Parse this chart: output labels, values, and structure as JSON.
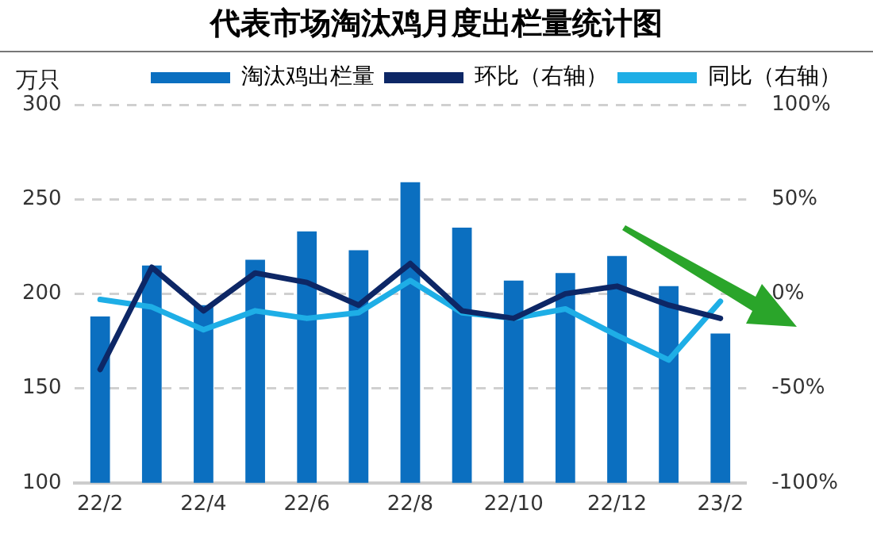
{
  "chart_data": {
    "type": "bar",
    "title": "代表市场淘汰鸡月度出栏量统计图",
    "ylabel": "万只",
    "categories": [
      "22/2",
      null,
      "22/4",
      null,
      "22/6",
      null,
      "22/8",
      null,
      "22/10",
      null,
      "22/12",
      null,
      "23/2"
    ],
    "series": [
      {
        "name": "淘汰鸡出栏量",
        "color": "#0b6fc0",
        "values": [
          188,
          215,
          194,
          218,
          233,
          223,
          259,
          235,
          207,
          211,
          220,
          204,
          179
        ]
      },
      {
        "name": "环比（右轴）",
        "type": "line",
        "axis": "y2",
        "color": "#0d2766",
        "values": [
          -40,
          14,
          -9,
          11,
          6,
          -6,
          16,
          -9,
          -13,
          0,
          4,
          -6,
          -13
        ]
      },
      {
        "name": "同比（右轴）",
        "type": "line",
        "axis": "y2",
        "color": "#1eaee6",
        "values": [
          -3,
          -7,
          -19,
          -9,
          -13,
          -10,
          7,
          -10,
          -13,
          -8,
          -22,
          -35,
          -4
        ]
      }
    ],
    "ylim": [
      100,
      300
    ],
    "yticks": [
      100,
      150,
      200,
      250,
      300
    ],
    "y2lim": [
      -100,
      100
    ],
    "y2ticks": [
      {
        "value": -100,
        "label": "-100%"
      },
      {
        "value": -50,
        "label": "-50%"
      },
      {
        "value": 0,
        "label": "0%"
      },
      {
        "value": 50,
        "label": "50%"
      },
      {
        "value": 100,
        "label": "100%"
      }
    ],
    "grid": "y",
    "legend": "top",
    "marker": "none",
    "line_style": "solid"
  }
}
